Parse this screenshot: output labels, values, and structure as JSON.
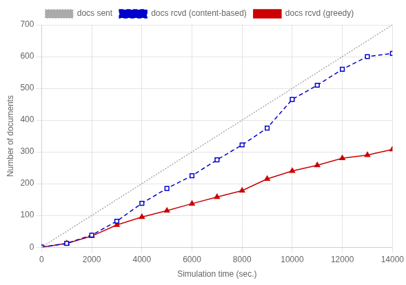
{
  "chart_data": {
    "type": "line",
    "xlabel": "Simulation time (sec.)",
    "ylabel": "Number of documents",
    "xlim": [
      0,
      14000
    ],
    "ylim": [
      0,
      700
    ],
    "xticks": [
      0,
      2000,
      4000,
      6000,
      8000,
      10000,
      12000,
      14000
    ],
    "yticks": [
      0,
      100,
      200,
      300,
      400,
      500,
      600,
      700
    ],
    "grid": true,
    "legend": "top",
    "series": [
      {
        "name": "docs sent",
        "color": "#aaaaaa",
        "marker": "none",
        "line_style": "dotted",
        "x": [
          0,
          14000
        ],
        "values": [
          0,
          700
        ]
      },
      {
        "name": "docs rcvd (content-based)",
        "color": "#0000cc",
        "marker": "square",
        "line_style": "dashed",
        "x": [
          0,
          1000,
          2000,
          3000,
          4000,
          5000,
          6000,
          7000,
          8000,
          9000,
          10000,
          11000,
          12000,
          13000,
          14000
        ],
        "values": [
          0,
          12,
          38,
          82,
          138,
          185,
          225,
          275,
          322,
          375,
          465,
          510,
          560,
          600,
          610
        ]
      },
      {
        "name": "docs rcvd (greedy)",
        "color": "#cc0000",
        "marker": "triangle",
        "line_style": "solid",
        "x": [
          0,
          1000,
          2000,
          3000,
          4000,
          5000,
          6000,
          7000,
          8000,
          9000,
          10000,
          11000,
          12000,
          13000,
          14000
        ],
        "values": [
          0,
          12,
          35,
          70,
          95,
          115,
          137,
          158,
          178,
          215,
          240,
          258,
          280,
          290,
          308
        ]
      }
    ]
  }
}
